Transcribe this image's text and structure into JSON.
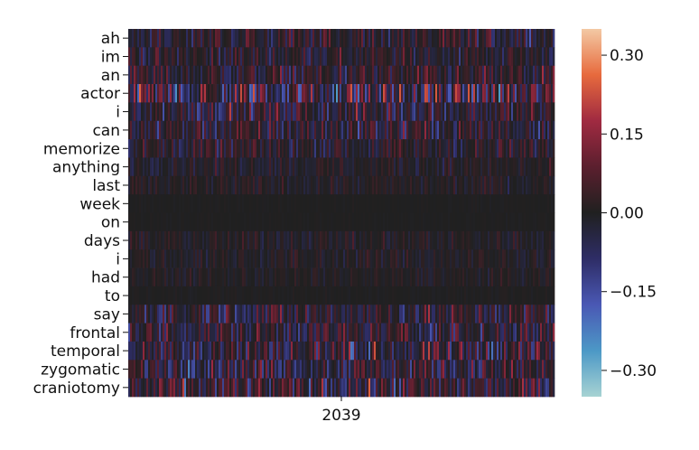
{
  "chart_data": {
    "type": "heatmap",
    "title": "",
    "xlabel": "",
    "ylabel": "",
    "y_categories": [
      "ah",
      "im",
      "an",
      "actor",
      "i",
      "can",
      "memorize",
      "anything",
      "last",
      "week",
      "on",
      "days",
      "i",
      "had",
      "to",
      "say",
      "frontal",
      "temporal",
      "zygomatic",
      "craniotomy"
    ],
    "x_tick_labels": [
      "2039"
    ],
    "row_amplitude": [
      0.08,
      0.07,
      0.09,
      0.17,
      0.1,
      0.1,
      0.07,
      0.04,
      0.035,
      0.004,
      0.004,
      0.035,
      0.035,
      0.025,
      0.006,
      0.1,
      0.1,
      0.12,
      0.11,
      0.12
    ],
    "colorbar": {
      "vmin": -0.35,
      "vmax": 0.35,
      "ticks": [
        0.3,
        0.15,
        0.0,
        -0.15,
        -0.3
      ],
      "tick_labels": [
        "0.30",
        "0.15",
        "0.00",
        "−0.15",
        "−0.30"
      ],
      "colormap": [
        "#a7d3d3",
        "#4c98c6",
        "#4a58b4",
        "#2e2d66",
        "#202020",
        "#5b1f2e",
        "#a02a41",
        "#e76a3d",
        "#f3c9a4"
      ]
    }
  }
}
